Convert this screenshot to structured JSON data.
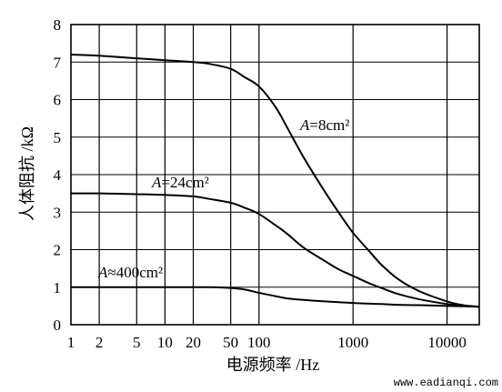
{
  "chart_data": {
    "type": "line",
    "xscale": "log",
    "xlim": [
      1,
      22000
    ],
    "ylim": [
      0,
      8
    ],
    "grid": true,
    "xlabel": "电源频率 /Hz",
    "ylabel": "人体阻抗 /kΩ",
    "x_ticks": [
      1,
      2,
      5,
      10,
      20,
      50,
      100,
      1000,
      10000
    ],
    "x_tick_labels": [
      "1",
      "2",
      "5",
      "10",
      "20",
      "50",
      "100",
      "1000",
      "10000"
    ],
    "y_ticks": [
      0,
      1,
      2,
      3,
      4,
      5,
      6,
      7,
      8
    ],
    "y_tick_labels": [
      "0",
      "1",
      "2",
      "3",
      "4",
      "5",
      "6",
      "7",
      "8"
    ],
    "series": [
      {
        "name": "A=8cm²",
        "label_var": "A",
        "label_rest": "=8cm²",
        "x": [
          1,
          2,
          5,
          10,
          20,
          30,
          50,
          70,
          100,
          150,
          200,
          300,
          500,
          700,
          1000,
          1500,
          2000,
          3000,
          5000,
          10000,
          15000,
          22000
        ],
        "y": [
          7.2,
          7.17,
          7.1,
          7.05,
          7.0,
          6.95,
          6.82,
          6.6,
          6.35,
          5.8,
          5.25,
          4.45,
          3.55,
          3.0,
          2.45,
          1.95,
          1.6,
          1.22,
          0.9,
          0.62,
          0.52,
          0.48
        ]
      },
      {
        "name": "A=24cm²",
        "label_var": "A",
        "label_rest": "=24cm²",
        "x": [
          1,
          2,
          5,
          10,
          20,
          30,
          50,
          70,
          100,
          150,
          200,
          300,
          500,
          700,
          1000,
          1500,
          2000,
          3000,
          5000,
          10000,
          15000,
          22000
        ],
        "y": [
          3.5,
          3.5,
          3.48,
          3.46,
          3.42,
          3.35,
          3.25,
          3.12,
          2.95,
          2.65,
          2.42,
          2.05,
          1.7,
          1.48,
          1.3,
          1.1,
          0.98,
          0.82,
          0.68,
          0.55,
          0.5,
          0.48
        ]
      },
      {
        "name": "A≈400cm²",
        "label_var": "A",
        "label_rest": "≈400cm²",
        "x": [
          1,
          2,
          5,
          10,
          20,
          30,
          50,
          70,
          100,
          150,
          200,
          300,
          500,
          700,
          1000,
          1500,
          2000,
          3000,
          5000,
          10000,
          15000,
          22000
        ],
        "y": [
          1.0,
          1.0,
          1.0,
          1.0,
          1.0,
          1.0,
          0.98,
          0.94,
          0.85,
          0.76,
          0.7,
          0.66,
          0.62,
          0.6,
          0.58,
          0.56,
          0.55,
          0.53,
          0.52,
          0.5,
          0.49,
          0.48
        ]
      }
    ],
    "watermark": "www.eadianqi.com"
  }
}
